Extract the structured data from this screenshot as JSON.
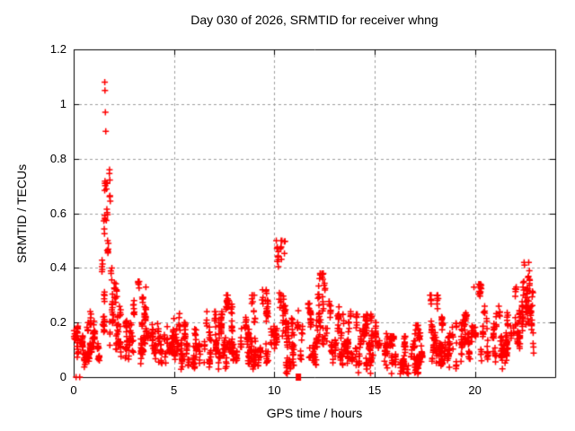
{
  "title": "Day 030 of 2026, SRMTID for receiver whng",
  "axes": {
    "x": {
      "label": "GPS time / hours",
      "min": 0,
      "max": 24,
      "tick_values": [
        0,
        5,
        10,
        15,
        20
      ],
      "tick_labels": [
        "0",
        "5",
        "10",
        "15",
        "20"
      ]
    },
    "y": {
      "label": "SRMTID / TECUs",
      "min": 0,
      "max": 1.2,
      "tick_values": [
        0,
        0.2,
        0.4,
        0.6,
        0.8,
        1.0,
        1.2
      ],
      "tick_labels": [
        "0",
        "0.2",
        "0.4",
        "0.6",
        "0.8",
        "1",
        "1.2"
      ]
    }
  },
  "colors": {
    "background": "#ffffff",
    "marker": "#ff0000",
    "axis": "#000000",
    "grid": "#9e9e9e",
    "text": "#000000"
  },
  "chart_data": {
    "type": "scatter",
    "marker_style": "plus",
    "title": "Day 030 of 2026, SRMTID for receiver whng",
    "xlabel": "GPS time / hours",
    "ylabel": "SRMTID / TECUs",
    "xlim": [
      0,
      24
    ],
    "ylim": [
      0,
      1.2
    ],
    "grid": "dashed gray at every major tick",
    "x_ticks": [
      0,
      5,
      10,
      15,
      20
    ],
    "y_ticks": [
      0,
      0.2,
      0.4,
      0.6,
      0.8,
      1.0,
      1.2
    ],
    "data_end_hour": 22.95,
    "description": "Dense noisy band of ~2000 red plus markers around 0.05-0.25 TECUs across 0-23 h, with a large spike peaking at 1.08 near hour 1.6, secondary peaks ~0.5 at 10.35 h, ~0.38 at 12.3 h, ~0.42 at 22.45 h, smaller bumps at 3.6, 9, 17.8 and 19.9 h, a quiet dip near 15.6-16.7 h, two points at 0 near hour 0.1-0.3 and one isolated square point at (11.2, 0).",
    "segment_format": [
      "x_start_hour",
      "x_end_hour",
      "y_min",
      "y_max",
      "mode_0_band_1_streak"
    ],
    "envelope_segments": [
      [
        0.0,
        1.35,
        0.07,
        0.24,
        0
      ],
      [
        1.35,
        1.55,
        0.12,
        0.5,
        0
      ],
      [
        1.5,
        1.66,
        0.3,
        1.08,
        1
      ],
      [
        1.6,
        1.82,
        0.35,
        0.78,
        1
      ],
      [
        1.7,
        2.05,
        0.15,
        0.5,
        0
      ],
      [
        2.0,
        2.5,
        0.1,
        0.38,
        0
      ],
      [
        2.5,
        3.1,
        0.09,
        0.3,
        0
      ],
      [
        3.1,
        4.3,
        0.1,
        0.35,
        0
      ],
      [
        4.3,
        5.3,
        0.08,
        0.26,
        0
      ],
      [
        5.3,
        6.3,
        0.05,
        0.2,
        0
      ],
      [
        6.3,
        7.6,
        0.05,
        0.24,
        0
      ],
      [
        7.6,
        9.4,
        0.06,
        0.3,
        0
      ],
      [
        9.4,
        10.1,
        0.07,
        0.32,
        0
      ],
      [
        10.1,
        10.65,
        0.1,
        0.5,
        1
      ],
      [
        10.55,
        11.35,
        0.04,
        0.3,
        0
      ],
      [
        11.35,
        12.15,
        0.07,
        0.27,
        0
      ],
      [
        12.15,
        12.85,
        0.1,
        0.38,
        1
      ],
      [
        12.85,
        14.1,
        0.07,
        0.3,
        0
      ],
      [
        14.1,
        15.6,
        0.05,
        0.23,
        0
      ],
      [
        15.6,
        16.7,
        0.02,
        0.15,
        0
      ],
      [
        16.7,
        17.55,
        0.04,
        0.19,
        0
      ],
      [
        17.55,
        18.25,
        0.07,
        0.3,
        0
      ],
      [
        18.25,
        19.45,
        0.05,
        0.22,
        0
      ],
      [
        19.45,
        20.35,
        0.09,
        0.34,
        0
      ],
      [
        20.35,
        21.85,
        0.08,
        0.26,
        0
      ],
      [
        21.85,
        22.35,
        0.1,
        0.33,
        0
      ],
      [
        22.3,
        22.75,
        0.14,
        0.42,
        1
      ],
      [
        22.6,
        22.95,
        0.1,
        0.4,
        1
      ]
    ],
    "anchor_points": [
      [
        1.55,
        1.08
      ],
      [
        1.56,
        1.05
      ],
      [
        1.58,
        0.97
      ],
      [
        1.6,
        0.9
      ],
      [
        10.35,
        0.5
      ],
      [
        10.3,
        0.47
      ],
      [
        12.3,
        0.38
      ],
      [
        22.45,
        0.42
      ],
      [
        22.47,
        0.41
      ],
      [
        3.6,
        0.33
      ],
      [
        19.95,
        0.33
      ],
      [
        17.8,
        0.28
      ],
      [
        9.0,
        0.3
      ]
    ],
    "zero_points": [
      [
        0.12,
        0.0
      ],
      [
        0.3,
        0.0
      ]
    ],
    "square_point": [
      11.2,
      0.0
    ],
    "random_seed": 42
  }
}
